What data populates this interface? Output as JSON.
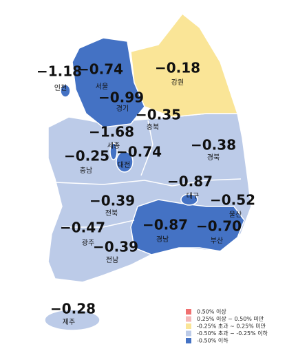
{
  "regions": [
    {
      "name": "인천",
      "value": "−1.18"
    },
    {
      "name": "서울",
      "value": "−0.74"
    },
    {
      "name": "경기",
      "value": "−0.99"
    },
    {
      "name": "강원",
      "value": "−0.18"
    },
    {
      "name": "충북",
      "value": "−0.35"
    },
    {
      "name": "세종",
      "value": "−1.68"
    },
    {
      "name": "대전",
      "value": "−0.74"
    },
    {
      "name": "충남",
      "value": "−0.25"
    },
    {
      "name": "경북",
      "value": "−0.38"
    },
    {
      "name": "대구",
      "value": "−0.87"
    },
    {
      "name": "울산",
      "value": "−0.52"
    },
    {
      "name": "부산",
      "value": "−0.70"
    },
    {
      "name": "경남",
      "value": "−0.87"
    },
    {
      "name": "전북",
      "value": "−0.39"
    },
    {
      "name": "광주",
      "value": "−0.47"
    },
    {
      "name": "전남",
      "value": "−0.39"
    },
    {
      "name": "제주",
      "value": "−0.28"
    }
  ],
  "legend": [
    {
      "label": "0.50% 이상",
      "color": "#f07070"
    },
    {
      "label": "0.25% 이상 ~ 0.50% 미만",
      "color": "#f4b8b8"
    },
    {
      "label": "-0.25% 초과 ~ 0.25% 미만",
      "color": "#fae597"
    },
    {
      "label": "-0.50% 초과 ~ -0.25% 이하",
      "color": "#bccbe8"
    },
    {
      "label": "-0.50% 이하",
      "color": "#4472c4"
    }
  ]
}
